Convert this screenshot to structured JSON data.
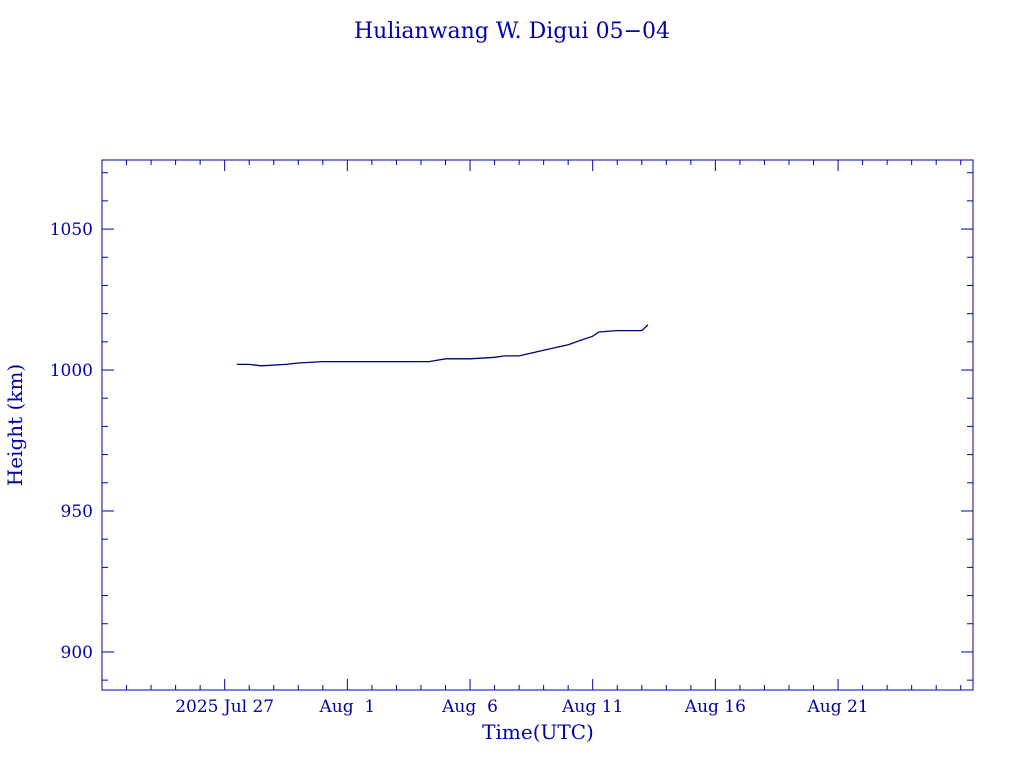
{
  "colors": {
    "axis": "#0000aa",
    "line": "#00007a",
    "background": "#ffffff"
  },
  "chart_data": {
    "type": "line",
    "title": "Hulianwang W. Digui 05−04",
    "xlabel": "Time(UTC)",
    "ylabel": "Height (km)",
    "x_ticks": [
      {
        "date": "2025-07-27",
        "label": "2025 Jul 27"
      },
      {
        "date": "2025-08-01",
        "label": "Aug  1"
      },
      {
        "date": "2025-08-06",
        "label": "Aug  6"
      },
      {
        "date": "2025-08-11",
        "label": "Aug 11"
      },
      {
        "date": "2025-08-16",
        "label": "Aug 16"
      },
      {
        "date": "2025-08-21",
        "label": "Aug 21"
      }
    ],
    "y_ticks": [
      900,
      950,
      1000,
      1050
    ],
    "xlim": [
      "2025-07-22T00:00",
      "2025-08-26T12:00"
    ],
    "ylim": [
      886.5,
      1074.5
    ],
    "grid": false,
    "series": [
      {
        "x": [
          "2025-07-27T12:00",
          "2025-07-28T00:00",
          "2025-07-28T12:00",
          "2025-07-29T12:00",
          "2025-07-30T00:00",
          "2025-07-31T00:00",
          "2025-08-02T00:00",
          "2025-08-03T00:00",
          "2025-08-04T00:00",
          "2025-08-04T08:00",
          "2025-08-05T00:00",
          "2025-08-06T00:00",
          "2025-08-07T00:00",
          "2025-08-07T10:00",
          "2025-08-08T00:00",
          "2025-08-09T00:00",
          "2025-08-10T00:00",
          "2025-08-10T12:00",
          "2025-08-11T00:00",
          "2025-08-11T06:00",
          "2025-08-12T00:00",
          "2025-08-12T12:00",
          "2025-08-13T00:00",
          "2025-08-13T06:00"
        ],
        "values": [
          1002,
          1002,
          1001.5,
          1002,
          1002.5,
          1003,
          1003,
          1003,
          1003,
          1003,
          1004,
          1004,
          1004.5,
          1005,
          1005,
          1007,
          1009,
          1010.5,
          1012,
          1013.5,
          1014,
          1014,
          1014,
          1016
        ]
      }
    ]
  }
}
